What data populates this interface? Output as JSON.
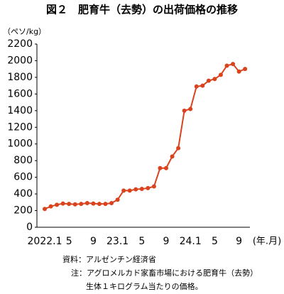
{
  "chart_data": {
    "type": "line",
    "title": "図２　肥育牛（去勢）の出荷価格の推移",
    "y_label": "（ペソ/kg）",
    "x_label": "(年.月)",
    "categories": [
      "2022.1",
      null,
      null,
      null,
      "5",
      null,
      null,
      null,
      "9",
      null,
      null,
      null,
      "23.1",
      null,
      null,
      null,
      "5",
      null,
      null,
      null,
      "9",
      null,
      null,
      null,
      "24.1",
      null,
      null,
      null,
      "5",
      null,
      null,
      null,
      "9",
      null
    ],
    "series": [
      {
        "name": "肥育牛（去勢）",
        "color": "#d9431e",
        "values": [
          220,
          250,
          270,
          285,
          280,
          275,
          280,
          290,
          285,
          280,
          280,
          290,
          330,
          440,
          440,
          455,
          460,
          470,
          490,
          710,
          710,
          850,
          950,
          1400,
          1420,
          1690,
          1700,
          1760,
          1780,
          1830,
          1940,
          1960,
          1870,
          1900
        ]
      }
    ],
    "ylim": [
      0,
      2200
    ],
    "yticks": [
      0,
      200,
      400,
      600,
      800,
      1000,
      1200,
      1400,
      1600,
      1800,
      2000,
      2200
    ],
    "grid": false,
    "notes": [
      "資料：アルゼンチン経済省",
      "注：アグロメルカド家畜市場における肥育牛（去勢）",
      "生体１キログラム当たりの価格。"
    ]
  }
}
